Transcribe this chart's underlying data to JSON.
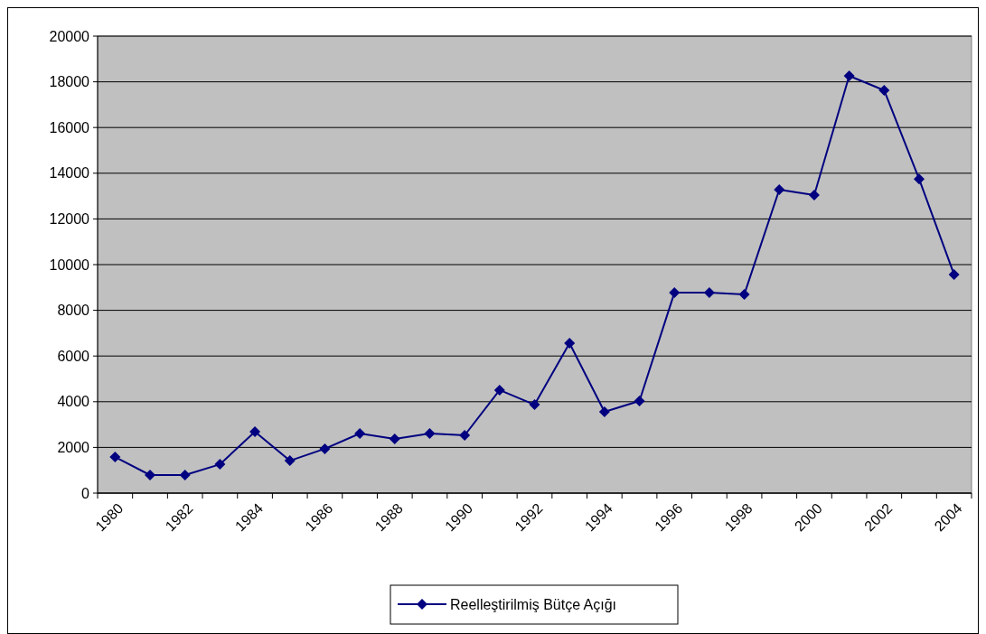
{
  "chart_data": {
    "type": "line",
    "categories": [
      "1980",
      null,
      "1982",
      null,
      "1984",
      null,
      "1986",
      null,
      "1988",
      null,
      "1990",
      null,
      "1992",
      null,
      "1994",
      null,
      "1996",
      null,
      "1998",
      null,
      "2000",
      null,
      "2002",
      null,
      "2004"
    ],
    "series": [
      {
        "name": "Reelleştirilmiş Bütçe Açığı",
        "color": "#000080",
        "values": [
          1580,
          790,
          790,
          1260,
          2690,
          1420,
          1940,
          2610,
          2370,
          2610,
          2530,
          4510,
          3870,
          6560,
          3560,
          4030,
          8770,
          8770,
          8700,
          13280,
          13040,
          18260,
          17630,
          13750,
          9570
        ]
      }
    ],
    "ylim": [
      0,
      20000
    ],
    "yticks": [
      0,
      2000,
      4000,
      6000,
      8000,
      10000,
      12000,
      14000,
      16000,
      18000,
      20000
    ],
    "grid": "y",
    "legend": "bottom",
    "marker": "diamond",
    "line_style": "solid"
  }
}
